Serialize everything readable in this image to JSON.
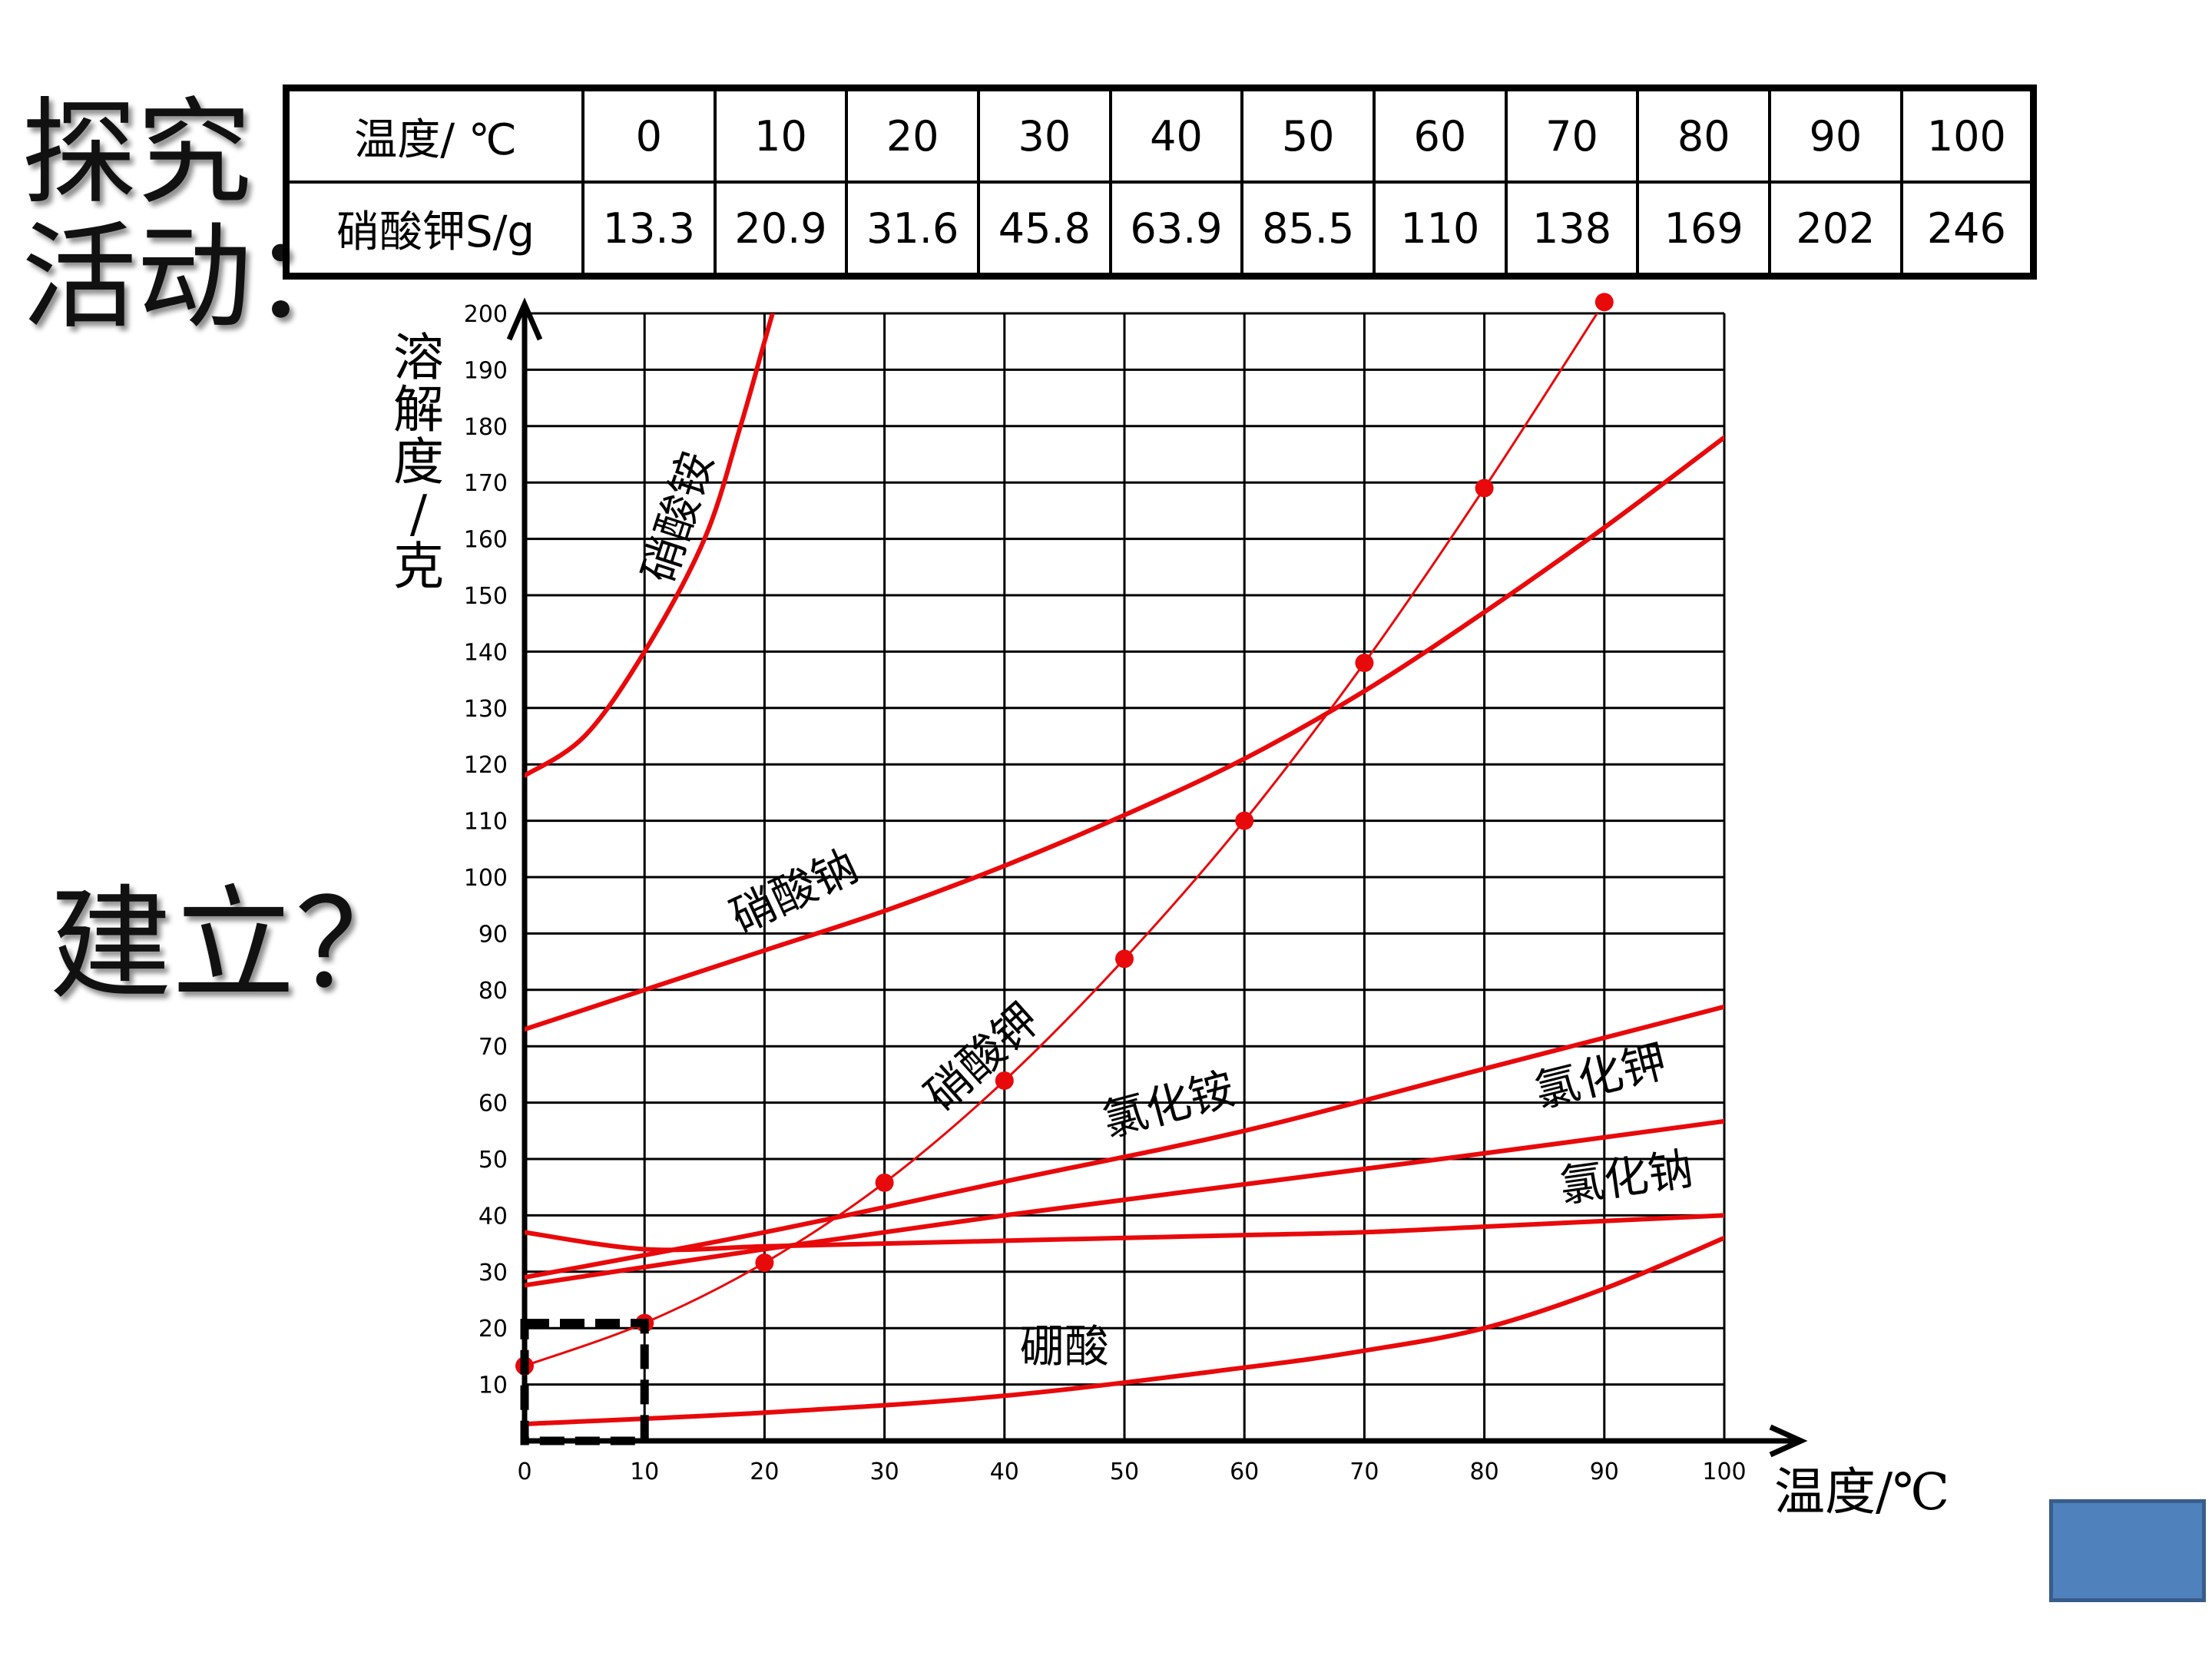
{
  "heading": {
    "line1": "探究",
    "line2": "活动：",
    "question": "建立？"
  },
  "table": {
    "row1_label": "温度/ ℃",
    "row2_label": "硝酸钾S/g",
    "temperatures": [
      "0",
      "10",
      "20",
      "30",
      "40",
      "50",
      "60",
      "70",
      "80",
      "90",
      "100"
    ],
    "solubility": [
      "13.3",
      "20.9",
      "31.6",
      "45.8",
      "63.9",
      "85.5",
      "110",
      "138",
      "169",
      "202",
      "246"
    ]
  },
  "chart_data": {
    "type": "line",
    "xlabel": "温度/℃",
    "ylabel": "溶解度/克",
    "xlim": [
      0,
      100
    ],
    "ylim": [
      0,
      200
    ],
    "x_ticks": [
      0,
      10,
      20,
      30,
      40,
      50,
      60,
      70,
      80,
      90,
      100
    ],
    "y_ticks": [
      10,
      20,
      30,
      40,
      50,
      60,
      70,
      80,
      90,
      100,
      110,
      120,
      130,
      140,
      150,
      160,
      170,
      180,
      190,
      200
    ],
    "grid": true,
    "series": [
      {
        "name": "硝酸铵",
        "color": "#e8090b",
        "x": [
          0,
          5,
          10,
          15,
          18,
          20,
          22
        ],
        "y": [
          118,
          125,
          140,
          160,
          180,
          195,
          210
        ]
      },
      {
        "name": "硝酸钠",
        "color": "#e8090b",
        "x": [
          0,
          10,
          20,
          30,
          40,
          50,
          60,
          70,
          80,
          90,
          100
        ],
        "y": [
          73,
          80,
          87,
          94,
          102,
          111,
          121,
          133,
          147,
          162,
          178
        ]
      },
      {
        "name": "硝酸钾",
        "color": "#e8090b",
        "markers": true,
        "x": [
          0,
          10,
          20,
          30,
          40,
          50,
          60,
          70,
          80,
          90
        ],
        "y": [
          13.3,
          20.9,
          31.6,
          45.8,
          63.9,
          85.5,
          110,
          138,
          169,
          202
        ]
      },
      {
        "name": "氯化铵",
        "color": "#e8090b",
        "x": [
          0,
          20,
          40,
          60,
          80,
          100
        ],
        "y": [
          29,
          37,
          46,
          55,
          66,
          77
        ]
      },
      {
        "name": "氯化钾",
        "color": "#e8090b",
        "x": [
          0,
          20,
          40,
          60,
          80,
          100
        ],
        "y": [
          27.6,
          34,
          40,
          45.5,
          51,
          56.7
        ]
      },
      {
        "name": "氯化钠",
        "color": "#e8090b",
        "x": [
          0,
          10,
          20,
          30,
          40,
          50,
          60,
          70,
          80,
          90,
          100
        ],
        "y": [
          37,
          34,
          34.5,
          35,
          35.5,
          36,
          36.5,
          37,
          38,
          39,
          40
        ]
      },
      {
        "name": "硼酸",
        "color": "#e8090b",
        "x": [
          0,
          20,
          40,
          60,
          70,
          80,
          90,
          100
        ],
        "y": [
          3,
          5,
          8,
          13,
          16,
          20,
          27,
          36
        ]
      }
    ],
    "annotations": [
      {
        "text": "硝酸铵",
        "x": 14,
        "y": 163,
        "rotate": -72
      },
      {
        "text": "硝酸钠",
        "x": 23,
        "y": 95,
        "rotate": -25
      },
      {
        "text": "硝酸钾",
        "x": 39,
        "y": 66,
        "rotate": -42
      },
      {
        "text": "氯化铵",
        "x": 54,
        "y": 57,
        "rotate": -15
      },
      {
        "text": "氯化钾",
        "x": 90,
        "y": 62,
        "rotate": -14
      },
      {
        "text": "氯化钠",
        "x": 92,
        "y": 44,
        "rotate": -8
      },
      {
        "text": "硼酸",
        "x": 45,
        "y": 14,
        "rotate": 0
      }
    ],
    "highlight_box": {
      "x": [
        0,
        10
      ],
      "y": [
        0,
        20.9
      ]
    }
  }
}
